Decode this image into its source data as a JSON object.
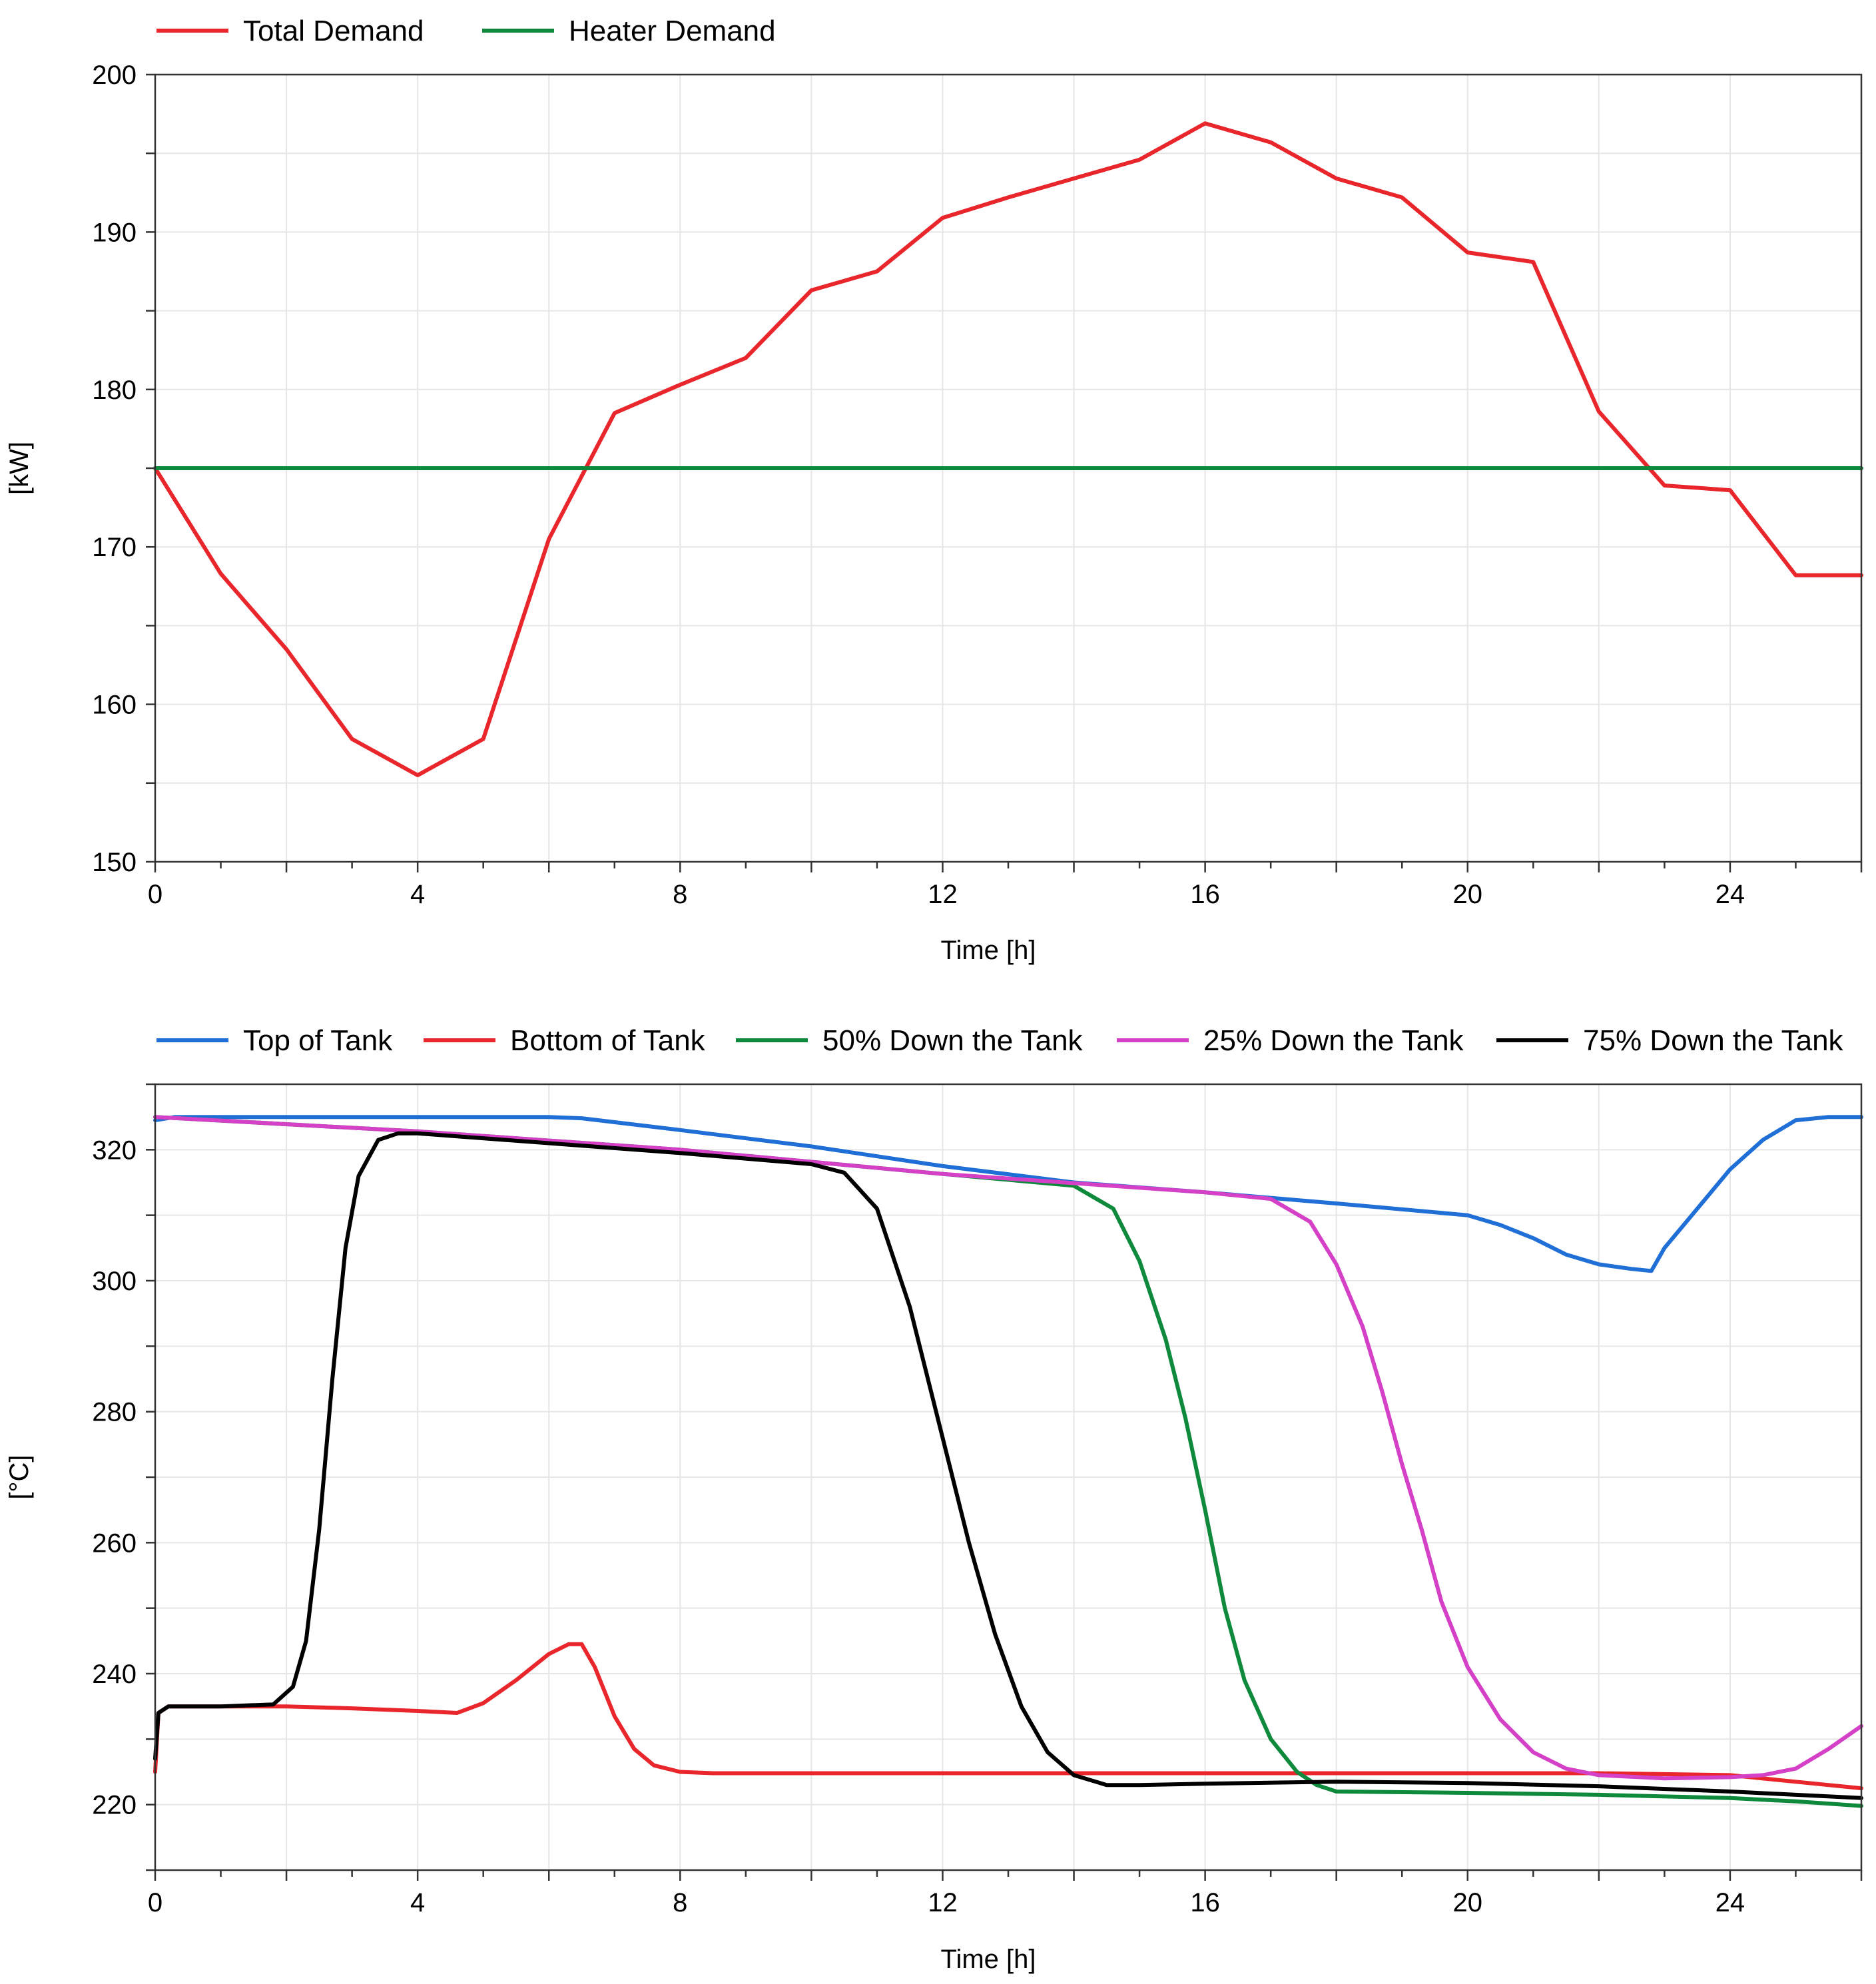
{
  "chart_data": [
    {
      "type": "line",
      "title": "",
      "xlabel": "Time [h]",
      "ylabel": "[kW]",
      "xlim": [
        0,
        26
      ],
      "ylim": [
        150,
        200
      ],
      "xticks": [
        0,
        4,
        8,
        12,
        16,
        20,
        24
      ],
      "yticks": [
        150,
        160,
        170,
        180,
        190,
        200
      ],
      "grid": true,
      "legend_position": "top-left",
      "series": [
        {
          "name": "Total Demand",
          "color": "#e8262b",
          "x": [
            0,
            1,
            2,
            3,
            4,
            5,
            6,
            7,
            8,
            9,
            10,
            11,
            12,
            13,
            14,
            15,
            16,
            17,
            18,
            19,
            20,
            21,
            22,
            23,
            24,
            25,
            26
          ],
          "y": [
            175,
            168.3,
            163.5,
            157.8,
            155.5,
            157.8,
            170.5,
            178.5,
            180.3,
            182,
            186.3,
            187.5,
            190.9,
            192.2,
            193.4,
            194.6,
            196.9,
            195.7,
            193.4,
            192.2,
            188.7,
            188.1,
            178.6,
            173.9,
            173.6,
            168.2,
            168.2
          ]
        },
        {
          "name": "Heater Demand",
          "color": "#0f8a3c",
          "x": [
            0,
            26
          ],
          "y": [
            175,
            175
          ]
        }
      ]
    },
    {
      "type": "line",
      "title": "",
      "xlabel": "Time [h]",
      "ylabel": "[°C]",
      "xlim": [
        0,
        26
      ],
      "ylim": [
        210,
        330
      ],
      "xticks": [
        0,
        4,
        8,
        12,
        16,
        20,
        24
      ],
      "yticks": [
        220,
        240,
        260,
        280,
        300,
        320
      ],
      "grid": true,
      "legend_position": "top",
      "series": [
        {
          "name": "Top of Tank",
          "color": "#1f6fd6",
          "x": [
            0,
            0.3,
            2,
            4,
            6,
            6.5,
            8,
            10,
            12,
            14,
            16,
            18,
            20,
            20.5,
            21,
            21.5,
            22,
            22.5,
            22.8,
            23,
            23.5,
            24,
            24.5,
            25,
            25.5,
            26
          ],
          "y": [
            324.5,
            325,
            325,
            325,
            325,
            324.8,
            323,
            320.5,
            317.5,
            315,
            313.5,
            311.8,
            310,
            308.5,
            306.5,
            304,
            302.5,
            301.8,
            301.5,
            305,
            311,
            317,
            321.5,
            324.5,
            325,
            325
          ]
        },
        {
          "name": "Bottom of Tank",
          "color": "#e8262b",
          "x": [
            0,
            0.05,
            0.2,
            1,
            2,
            3,
            4,
            4.6,
            5,
            5.5,
            6,
            6.3,
            6.5,
            6.7,
            7,
            7.3,
            7.6,
            8,
            8.5,
            10,
            12,
            14,
            16,
            18,
            20,
            22,
            24,
            25,
            26
          ],
          "y": [
            225,
            234,
            235,
            235,
            235,
            234.7,
            234.3,
            234,
            235.5,
            239,
            243,
            244.5,
            244.5,
            241,
            233.5,
            228.5,
            226,
            225,
            224.8,
            224.8,
            224.8,
            224.8,
            224.8,
            224.8,
            224.8,
            224.8,
            224.5,
            223.5,
            222.5
          ]
        },
        {
          "name": "50% Down the Tank",
          "color": "#0f8a3c",
          "x": [
            0,
            4,
            8,
            12,
            14,
            14.6,
            15,
            15.4,
            15.7,
            16,
            16.3,
            16.6,
            17,
            17.4,
            17.7,
            18,
            20,
            22,
            24,
            25,
            26
          ],
          "y": [
            325,
            322.8,
            320,
            316.3,
            314.5,
            311,
            303,
            291,
            279,
            265,
            250,
            239,
            230,
            225,
            223,
            222,
            221.8,
            221.5,
            221,
            220.5,
            219.8
          ]
        },
        {
          "name": "25% Down the Tank",
          "color": "#d441c6",
          "x": [
            0,
            4,
            8,
            12,
            16,
            17,
            17.6,
            18,
            18.4,
            18.7,
            19,
            19.3,
            19.6,
            20,
            20.5,
            21,
            21.5,
            22,
            23,
            24,
            24.5,
            25,
            25.5,
            26
          ],
          "y": [
            325,
            322.8,
            320,
            316.3,
            313.5,
            312.5,
            309,
            302.5,
            293,
            283,
            272,
            262,
            251,
            241,
            233,
            228,
            225.5,
            224.5,
            224,
            224.2,
            224.5,
            225.5,
            228.5,
            232
          ]
        },
        {
          "name": "75% Down the Tank",
          "color": "#000000",
          "x": [
            0,
            0.05,
            0.2,
            1,
            1.8,
            2.1,
            2.3,
            2.5,
            2.7,
            2.9,
            3.1,
            3.4,
            3.7,
            4,
            6,
            8,
            10,
            10.5,
            11,
            11.5,
            12,
            12.4,
            12.8,
            13.2,
            13.6,
            14,
            14.5,
            15,
            16,
            18,
            20,
            22,
            24,
            25,
            26
          ],
          "y": [
            227,
            234,
            235,
            235,
            235.3,
            238,
            245,
            262,
            285,
            305,
            316,
            321.5,
            322.5,
            322.5,
            321,
            319.5,
            317.8,
            316.5,
            311,
            296,
            276,
            260,
            246,
            235,
            228,
            224.5,
            223,
            223,
            223.2,
            223.5,
            223.3,
            222.8,
            222,
            221.5,
            221
          ]
        }
      ]
    }
  ]
}
